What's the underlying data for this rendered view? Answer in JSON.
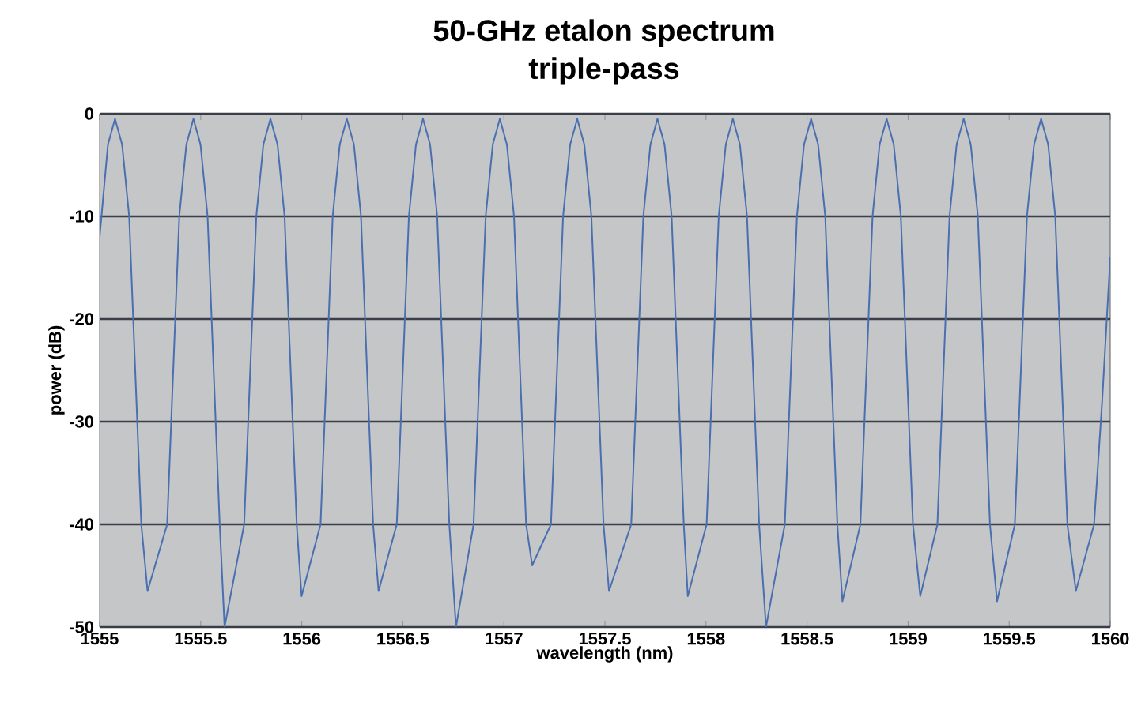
{
  "chart_data": {
    "type": "line",
    "title": "50-GHz etalon spectrum",
    "subtitle": "triple-pass",
    "xlabel": "wavelength (nm)",
    "ylabel": "power (dB)",
    "xlim": [
      1555,
      1560
    ],
    "ylim": [
      -50,
      0
    ],
    "xticks": [
      1555,
      1555.5,
      1556,
      1556.5,
      1557,
      1557.5,
      1558,
      1558.5,
      1559,
      1559.5,
      1560
    ],
    "yticks": [
      -50,
      -40,
      -30,
      -20,
      -10,
      0
    ],
    "grid": "y",
    "marker": "none",
    "line_style": "solid",
    "series": [
      {
        "color": "#4a6fb0",
        "x": [
          1555.0,
          1555.041,
          1555.076,
          1555.111,
          1555.146,
          1555.176,
          1555.206,
          1555.237,
          1555.334,
          1555.364,
          1555.394,
          1555.429,
          1555.464,
          1555.499,
          1555.534,
          1555.564,
          1555.594,
          1555.618,
          1555.715,
          1555.745,
          1555.775,
          1555.81,
          1555.845,
          1555.88,
          1555.915,
          1555.945,
          1555.975,
          1555.999,
          1556.093,
          1556.123,
          1556.153,
          1556.188,
          1556.223,
          1556.258,
          1556.293,
          1556.323,
          1556.353,
          1556.38,
          1556.47,
          1556.5,
          1556.53,
          1556.565,
          1556.6,
          1556.635,
          1556.67,
          1556.7,
          1556.73,
          1556.763,
          1556.85,
          1556.88,
          1556.91,
          1556.945,
          1556.98,
          1557.015,
          1557.05,
          1557.08,
          1557.11,
          1557.14,
          1557.233,
          1557.263,
          1557.293,
          1557.328,
          1557.363,
          1557.398,
          1557.433,
          1557.463,
          1557.493,
          1557.52,
          1557.63,
          1557.66,
          1557.69,
          1557.725,
          1557.76,
          1557.795,
          1557.83,
          1557.86,
          1557.89,
          1557.91,
          1558.003,
          1558.033,
          1558.063,
          1558.098,
          1558.133,
          1558.168,
          1558.203,
          1558.233,
          1558.263,
          1558.297,
          1558.39,
          1558.42,
          1558.45,
          1558.485,
          1558.52,
          1558.555,
          1558.59,
          1558.62,
          1558.65,
          1558.675,
          1558.764,
          1558.794,
          1558.824,
          1558.859,
          1558.894,
          1558.929,
          1558.964,
          1558.994,
          1559.024,
          1559.06,
          1559.145,
          1559.175,
          1559.205,
          1559.24,
          1559.275,
          1559.31,
          1559.345,
          1559.375,
          1559.405,
          1559.44,
          1559.528,
          1559.558,
          1559.588,
          1559.623,
          1559.658,
          1559.693,
          1559.728,
          1559.758,
          1559.788,
          1559.83,
          1559.92,
          1559.96,
          1560.0
        ],
        "values": [
          -12,
          -3,
          -0.5,
          -3,
          -10,
          -25,
          -40,
          -46.5,
          -40,
          -25,
          -10,
          -3,
          -0.5,
          -3,
          -10,
          -25,
          -40,
          -50,
          -40,
          -25,
          -10,
          -3,
          -0.5,
          -3,
          -10,
          -25,
          -40,
          -47,
          -40,
          -25,
          -10,
          -3,
          -0.5,
          -3,
          -10,
          -25,
          -40,
          -46.5,
          -40,
          -25,
          -10,
          -3,
          -0.5,
          -3,
          -10,
          -25,
          -40,
          -50,
          -40,
          -25,
          -10,
          -3,
          -0.5,
          -3,
          -10,
          -25,
          -40,
          -44,
          -40,
          -25,
          -10,
          -3,
          -0.5,
          -3,
          -10,
          -25,
          -40,
          -46.5,
          -40,
          -25,
          -10,
          -3,
          -0.5,
          -3,
          -10,
          -25,
          -40,
          -47,
          -40,
          -25,
          -10,
          -3,
          -0.5,
          -3,
          -10,
          -25,
          -40,
          -50,
          -40,
          -25,
          -10,
          -3,
          -0.5,
          -3,
          -10,
          -25,
          -40,
          -47.5,
          -40,
          -25,
          -10,
          -3,
          -0.5,
          -3,
          -10,
          -25,
          -40,
          -47,
          -40,
          -25,
          -10,
          -3,
          -0.5,
          -3,
          -10,
          -25,
          -40,
          -47.5,
          -40,
          -25,
          -10,
          -3,
          -0.5,
          -3,
          -10,
          -25,
          -40,
          -46.5,
          -40,
          -28,
          -14
        ]
      }
    ]
  }
}
